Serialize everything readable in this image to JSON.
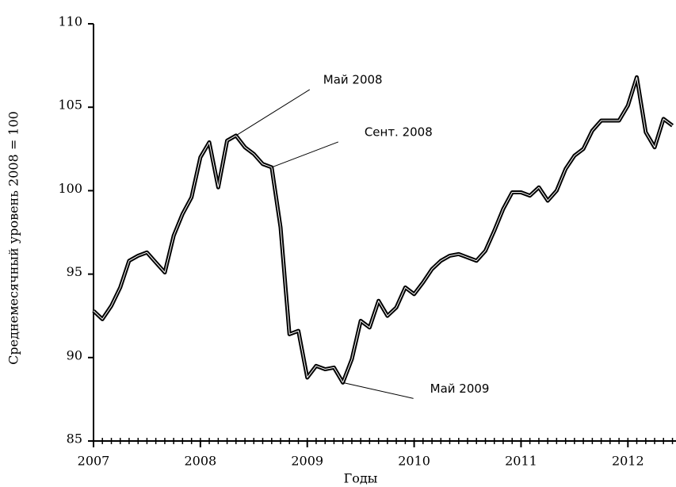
{
  "chart_data": {
    "type": "line",
    "y_label": "Среднемесячный уровень 2008 = 100",
    "x_label": "Годы",
    "x": [
      2007,
      2007.083,
      2007.167,
      2007.25,
      2007.333,
      2007.417,
      2007.5,
      2007.583,
      2007.667,
      2007.75,
      2007.833,
      2007.917,
      2008,
      2008.083,
      2008.167,
      2008.25,
      2008.333,
      2008.417,
      2008.5,
      2008.583,
      2008.667,
      2008.75,
      2008.833,
      2008.917,
      2009,
      2009.083,
      2009.167,
      2009.25,
      2009.333,
      2009.417,
      2009.5,
      2009.583,
      2009.667,
      2009.75,
      2009.833,
      2009.917,
      2010,
      2010.083,
      2010.167,
      2010.25,
      2010.333,
      2010.417,
      2010.5,
      2010.583,
      2010.667,
      2010.75,
      2010.833,
      2010.917,
      2011,
      2011.083,
      2011.167,
      2011.25,
      2011.333,
      2011.417,
      2011.5,
      2011.583,
      2011.667,
      2011.75,
      2011.833,
      2011.917,
      2012,
      2012.083,
      2012.167,
      2012.25,
      2012.333,
      2012.417
    ],
    "series": [
      {
        "color": "#000000",
        "values": [
          92.8,
          92.3,
          93.1,
          94.2,
          95.8,
          96.1,
          96.3,
          95.7,
          95.1,
          97.3,
          98.6,
          99.6,
          102.0,
          102.9,
          100.2,
          103.0,
          103.3,
          102.6,
          102.2,
          101.6,
          101.4,
          97.8,
          91.4,
          91.6,
          88.8,
          89.5,
          89.3,
          89.4,
          88.5,
          89.9,
          92.2,
          91.8,
          93.4,
          92.5,
          93.0,
          94.2,
          93.8,
          94.5,
          95.3,
          95.8,
          96.1,
          96.2,
          96.0,
          95.8,
          96.4,
          97.6,
          98.9,
          99.9,
          99.9,
          99.7,
          100.2,
          99.4,
          100.0,
          101.3,
          102.1,
          102.5,
          103.6,
          104.2,
          104.2,
          104.2,
          105.1,
          106.8,
          103.5,
          102.6,
          104.3,
          103.9
        ]
      }
    ],
    "xlim": [
      2007,
      2012.45
    ],
    "xticks": [
      2007,
      2008,
      2009,
      2010,
      2011,
      2012
    ],
    "ylim": [
      85,
      110
    ],
    "yticks": [
      85,
      90,
      95,
      100,
      105,
      110
    ],
    "annotations": [
      {
        "text": "Май 2008",
        "x": 2008.333,
        "y": 103.3
      },
      {
        "text": "Сент. 2008",
        "x": 2008.667,
        "y": 101.4
      },
      {
        "text": "Май 2009",
        "x": 2009.333,
        "y": 88.5
      }
    ]
  }
}
